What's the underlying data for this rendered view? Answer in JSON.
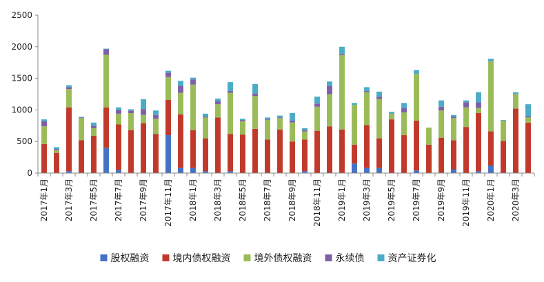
{
  "chart_data": {
    "type": "bar",
    "stacked": true,
    "title": "",
    "xlabel": "",
    "ylabel": "",
    "ylim": [
      0,
      2500
    ],
    "yticks": [
      0,
      500,
      1000,
      1500,
      2000,
      2500
    ],
    "grid": false,
    "legend_position": "bottom",
    "categories": [
      "2017年1月",
      "2017年2月",
      "2017年3月",
      "2017年4月",
      "2017年5月",
      "2017年6月",
      "2017年7月",
      "2017年8月",
      "2017年9月",
      "2017年10月",
      "2017年11月",
      "2017年12月",
      "2018年1月",
      "2018年2月",
      "2018年3月",
      "2018年4月",
      "2018年5月",
      "2018年6月",
      "2018年7月",
      "2018年8月",
      "2018年9月",
      "2018年10月",
      "2018年11月",
      "2018年12月",
      "2019年1月",
      "2019年2月",
      "2019年3月",
      "2019年4月",
      "2019年5月",
      "2019年6月",
      "2019年7月",
      "2019年8月",
      "2019年9月",
      "2019年10月",
      "2019年11月",
      "2019年12月",
      "2020年1月",
      "2020年2月",
      "2020年3月",
      "2020年4月"
    ],
    "tick_labels": [
      "2017年1月",
      "2017年3月",
      "2017年5月",
      "2017年7月",
      "2017年9月",
      "2017年11月",
      "2018年1月",
      "2018年3月",
      "2018年5月",
      "2018年7月",
      "2018年9月",
      "2018年11月",
      "2019年1月",
      "2019年3月",
      "2019年5月",
      "2019年7月",
      "2019年9月",
      "2019年11月",
      "2020年1月",
      "2020年3月"
    ],
    "series": [
      {
        "name": "股权融资",
        "color": "#4472c4",
        "values": [
          0,
          0,
          30,
          0,
          0,
          400,
          50,
          0,
          0,
          0,
          600,
          80,
          80,
          30,
          0,
          30,
          0,
          0,
          0,
          0,
          0,
          30,
          0,
          0,
          0,
          150,
          80,
          80,
          0,
          0,
          40,
          0,
          0,
          60,
          0,
          30,
          120,
          0,
          0,
          0
        ]
      },
      {
        "name": "境内债权融资",
        "color": "#c0392b",
        "values": [
          460,
          320,
          1010,
          520,
          590,
          640,
          720,
          680,
          790,
          620,
          560,
          850,
          600,
          520,
          880,
          590,
          610,
          700,
          530,
          690,
          500,
          500,
          670,
          740,
          690,
          300,
          680,
          470,
          850,
          600,
          790,
          450,
          560,
          460,
          730,
          920,
          540,
          510,
          1020,
          800
        ]
      },
      {
        "name": "境外债权融资",
        "color": "#9bbb59",
        "values": [
          280,
          40,
          290,
          350,
          120,
          830,
          170,
          270,
          130,
          240,
          360,
          340,
          720,
          330,
          210,
          650,
          210,
          520,
          310,
          180,
          300,
          130,
          380,
          510,
          1180,
          630,
          520,
          620,
          90,
          360,
          740,
          270,
          430,
          350,
          310,
          80,
          1110,
          320,
          230,
          80
        ]
      },
      {
        "name": "永续债",
        "color": "#7f5fa8",
        "values": [
          80,
          20,
          30,
          10,
          40,
          90,
          60,
          40,
          90,
          60,
          70,
          110,
          80,
          10,
          50,
          30,
          20,
          40,
          10,
          10,
          30,
          20,
          50,
          130,
          20,
          0,
          20,
          40,
          0,
          70,
          0,
          0,
          60,
          20,
          80,
          90,
          0,
          0,
          0,
          20
        ]
      },
      {
        "name": "资产证券化",
        "color": "#4bacc6",
        "values": [
          30,
          30,
          30,
          10,
          50,
          10,
          40,
          20,
          160,
          70,
          30,
          80,
          30,
          50,
          40,
          140,
          20,
          150,
          30,
          30,
          120,
          30,
          110,
          70,
          110,
          30,
          60,
          80,
          30,
          80,
          60,
          0,
          100,
          30,
          30,
          160,
          40,
          10,
          30,
          190
        ]
      }
    ]
  }
}
